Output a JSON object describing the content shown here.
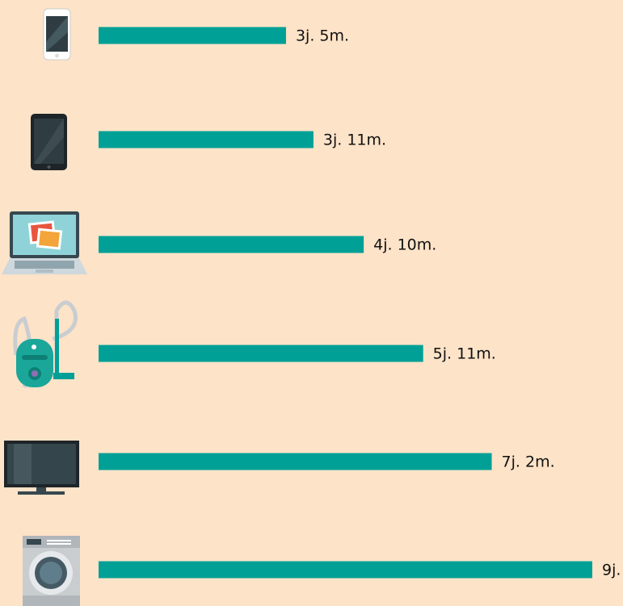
{
  "chart_data": {
    "type": "bar",
    "orientation": "horizontal",
    "color": "#00a096",
    "categories": [
      null,
      null,
      null,
      null,
      null,
      null
    ],
    "values": [
      3.4167,
      3.9167,
      4.8333,
      5.9167,
      7.1667,
      9
    ],
    "value_labels": [
      "3j. 5m.",
      "3j. 11m.",
      "4j. 10m.",
      "5j. 11m.",
      "7j. 2m.",
      "9j."
    ]
  }
}
